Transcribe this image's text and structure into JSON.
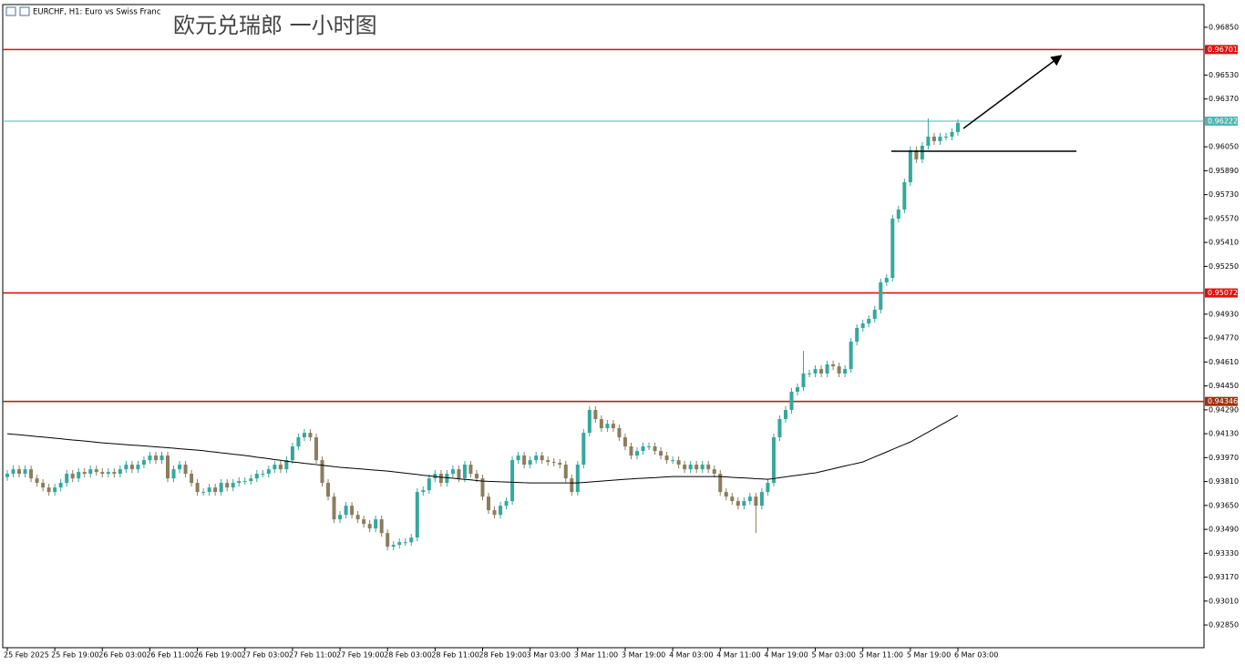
{
  "chart_data": {
    "type": "candlestick",
    "header": "EURCHF, H1:  Euro vs Swiss Franc",
    "title": "欧元兑瑞郎 一小时图",
    "up_color": "#35a89c",
    "down_color": "#8b7d5e",
    "ylim": [
      0.92698,
      0.97002
    ],
    "yticks": [
      {
        "value": 0.9685,
        "label": "0.96850"
      },
      {
        "value": 0.9653,
        "label": "0.96530"
      },
      {
        "value": 0.9637,
        "label": "0.96370"
      },
      {
        "value": 0.9605,
        "label": "0.96050"
      },
      {
        "value": 0.9589,
        "label": "0.95890"
      },
      {
        "value": 0.9573,
        "label": "0.95730"
      },
      {
        "value": 0.9557,
        "label": "0.95570"
      },
      {
        "value": 0.9541,
        "label": "0.95410"
      },
      {
        "value": 0.9525,
        "label": "0.95250"
      },
      {
        "value": 0.9493,
        "label": "0.94930"
      },
      {
        "value": 0.9477,
        "label": "0.94770"
      },
      {
        "value": 0.9461,
        "label": "0.94610"
      },
      {
        "value": 0.9445,
        "label": "0.94450"
      },
      {
        "value": 0.9429,
        "label": "0.94290"
      },
      {
        "value": 0.9413,
        "label": "0.94130"
      },
      {
        "value": 0.9397,
        "label": "0.93970"
      },
      {
        "value": 0.9381,
        "label": "0.93810"
      },
      {
        "value": 0.9365,
        "label": "0.93650"
      },
      {
        "value": 0.9349,
        "label": "0.93490"
      },
      {
        "value": 0.9333,
        "label": "0.93330"
      },
      {
        "value": 0.9317,
        "label": "0.93170"
      },
      {
        "value": 0.9301,
        "label": "0.93010"
      },
      {
        "value": 0.9285,
        "label": "0.92850"
      }
    ],
    "levels": [
      {
        "value": 0.96701,
        "color": "#e01010"
      },
      {
        "value": 0.96222,
        "color": "#4cb8b0"
      },
      {
        "value": 0.95072,
        "color": "#e01010"
      },
      {
        "value": 0.94346,
        "color": "#a0300e"
      }
    ],
    "categories": [
      "25 Feb 2025",
      null,
      null,
      null,
      null,
      null,
      null,
      null,
      "25 Feb 19:00",
      null,
      null,
      null,
      null,
      null,
      null,
      null,
      "26 Feb 03:00",
      null,
      null,
      null,
      null,
      null,
      null,
      null,
      "26 Feb 11:00",
      null,
      null,
      null,
      null,
      null,
      null,
      null,
      "26 Feb 19:00",
      null,
      null,
      null,
      null,
      null,
      null,
      null,
      "27 Feb 03:00",
      null,
      null,
      null,
      null,
      null,
      null,
      null,
      "27 Feb 11:00",
      null,
      null,
      null,
      null,
      null,
      null,
      null,
      "27 Feb 19:00",
      null,
      null,
      null,
      null,
      null,
      null,
      null,
      "28 Feb 03:00",
      null,
      null,
      null,
      null,
      null,
      null,
      null,
      "28 Feb 11:00",
      null,
      null,
      null,
      null,
      null,
      null,
      null,
      "28 Feb 19:00",
      null,
      null,
      null,
      null,
      null,
      null,
      null,
      "3 Mar 03:00",
      null,
      null,
      null,
      null,
      null,
      null,
      null,
      "3 Mar 11:00",
      null,
      null,
      null,
      null,
      null,
      null,
      null,
      "3 Mar 19:00",
      null,
      null,
      null,
      null,
      null,
      null,
      null,
      "4 Mar 03:00",
      null,
      null,
      null,
      null,
      null,
      null,
      null,
      "4 Mar 11:00",
      null,
      null,
      null,
      null,
      null,
      null,
      null,
      "4 Mar 19:00",
      null,
      null,
      null,
      null,
      null,
      null,
      null,
      "5 Mar 03:00",
      null,
      null,
      null,
      null,
      null,
      null,
      null,
      "5 Mar 11:00",
      null,
      null,
      null,
      null,
      null,
      null,
      null,
      "5 Mar 19:00",
      null,
      null,
      null,
      null,
      null,
      null,
      null,
      "6 Mar 03:00"
    ],
    "open": [
      0.9384,
      0.93862,
      0.93892,
      0.93862,
      0.93892,
      0.93831,
      0.93801,
      0.9377,
      0.9374,
      0.9377,
      0.93801,
      0.93862,
      0.93831,
      0.93874,
      0.93862,
      0.93892,
      0.93874,
      0.93862,
      0.93874,
      0.93862,
      0.93892,
      0.93923,
      0.93892,
      0.93923,
      0.93953,
      0.93984,
      0.93953,
      0.93984,
      0.93831,
      0.93892,
      0.93923,
      0.93862,
      0.93801,
      0.9374,
      0.9374,
      0.9377,
      0.9374,
      0.93801,
      0.9377,
      0.93801,
      0.93813,
      0.93813,
      0.93831,
      0.93862,
      0.93862,
      0.93892,
      0.93923,
      0.93892,
      0.93953,
      0.94045,
      0.94106,
      0.94136,
      0.94106,
      0.93953,
      0.93801,
      0.93709,
      0.93557,
      0.93587,
      0.93648,
      0.93587,
      0.93557,
      0.93526,
      0.93496,
      0.93557,
      0.93465,
      0.93374,
      0.93386,
      0.93404,
      0.93404,
      0.93435,
      0.9374,
      0.93752,
      0.93831,
      0.93862,
      0.93801,
      0.93862,
      0.93892,
      0.93831,
      0.93923,
      0.93862,
      0.93831,
      0.93709,
      0.93618,
      0.93587,
      0.93648,
      0.93679,
      0.93953,
      0.93984,
      0.93923,
      0.93953,
      0.93984,
      0.93953,
      0.93941,
      0.93935,
      0.93923,
      0.93831,
      0.9374,
      0.93923,
      0.94136,
      0.94289,
      0.94228,
      0.94167,
      0.94197,
      0.94167,
      0.94106,
      0.94045,
      0.93984,
      0.94014,
      0.94045,
      0.94045,
      0.94014,
      0.93984,
      0.93953,
      0.93953,
      0.93923,
      0.93892,
      0.93923,
      0.93892,
      0.93923,
      0.93892,
      0.93862,
      0.9374,
      0.93709,
      0.93679,
      0.93648,
      0.93679,
      0.93709,
      0.93648,
      0.9374,
      0.93801,
      0.94106,
      0.94228,
      0.94289,
      0.94411,
      0.94441,
      0.94533,
      0.94533,
      0.94563,
      0.94533,
      0.94594,
      0.94581,
      0.94533,
      0.94563,
      0.94746,
      0.94838,
      0.94868,
      0.94899,
      0.9496,
      0.95143,
      0.95173,
      0.95569,
      0.9563,
      0.95813,
      0.96027,
      0.95966,
      0.96057,
      0.96118,
      0.96088,
      0.96118,
      0.96118,
      0.96149
    ],
    "high": [
      0.93887,
      0.93917,
      0.93917,
      0.93917,
      0.93917,
      0.93856,
      0.93826,
      0.93795,
      0.93795,
      0.93826,
      0.93887,
      0.93887,
      0.93899,
      0.93899,
      0.93917,
      0.93917,
      0.93899,
      0.93899,
      0.93899,
      0.93917,
      0.93948,
      0.93948,
      0.93948,
      0.93978,
      0.94009,
      0.94009,
      0.94009,
      0.94009,
      0.93917,
      0.93948,
      0.93948,
      0.93887,
      0.93826,
      0.93765,
      0.93795,
      0.93795,
      0.93826,
      0.93826,
      0.93826,
      0.93838,
      0.93838,
      0.93856,
      0.93887,
      0.93887,
      0.93917,
      0.93948,
      0.93948,
      0.93978,
      0.9407,
      0.94131,
      0.94161,
      0.94161,
      0.94131,
      0.93978,
      0.93826,
      0.93734,
      0.93612,
      0.93673,
      0.93673,
      0.93612,
      0.93582,
      0.93551,
      0.93582,
      0.93582,
      0.9349,
      0.93411,
      0.93429,
      0.93429,
      0.9346,
      0.93765,
      0.93777,
      0.93856,
      0.93887,
      0.93887,
      0.93887,
      0.93917,
      0.93917,
      0.93948,
      0.93948,
      0.93887,
      0.93856,
      0.93734,
      0.93643,
      0.93673,
      0.93704,
      0.93978,
      0.94009,
      0.94009,
      0.93978,
      0.94009,
      0.94009,
      0.93978,
      0.93966,
      0.9396,
      0.93948,
      0.93856,
      0.93948,
      0.94161,
      0.94314,
      0.94314,
      0.94253,
      0.94222,
      0.94222,
      0.94192,
      0.94131,
      0.9407,
      0.94039,
      0.9407,
      0.9407,
      0.9407,
      0.94039,
      0.94009,
      0.93978,
      0.93978,
      0.93948,
      0.93948,
      0.93948,
      0.93948,
      0.93948,
      0.93917,
      0.93887,
      0.93765,
      0.93734,
      0.93704,
      0.93704,
      0.93734,
      0.93734,
      0.93765,
      0.93826,
      0.94131,
      0.94253,
      0.94314,
      0.94436,
      0.94466,
      0.94685,
      0.94558,
      0.94588,
      0.94588,
      0.94619,
      0.94619,
      0.94606,
      0.94588,
      0.94771,
      0.94863,
      0.94893,
      0.94924,
      0.94985,
      0.95168,
      0.95198,
      0.95594,
      0.95655,
      0.95838,
      0.96052,
      0.96052,
      0.96082,
      0.9624,
      0.96143,
      0.96143,
      0.96143,
      0.96174,
      0.96235
    ],
    "low": [
      0.93815,
      0.93837,
      0.93837,
      0.93837,
      0.93806,
      0.93776,
      0.93745,
      0.93715,
      0.93715,
      0.93745,
      0.93776,
      0.93806,
      0.93806,
      0.93837,
      0.93837,
      0.93849,
      0.93837,
      0.93837,
      0.93837,
      0.93837,
      0.93867,
      0.93867,
      0.93867,
      0.93898,
      0.93928,
      0.93928,
      0.93928,
      0.93806,
      0.93806,
      0.93867,
      0.93837,
      0.93776,
      0.93715,
      0.93715,
      0.93715,
      0.93715,
      0.93715,
      0.93745,
      0.93745,
      0.93776,
      0.93788,
      0.93788,
      0.93806,
      0.93837,
      0.93837,
      0.93867,
      0.93867,
      0.93867,
      0.93928,
      0.9402,
      0.94081,
      0.94081,
      0.93928,
      0.93776,
      0.93684,
      0.93532,
      0.93532,
      0.93562,
      0.93562,
      0.93532,
      0.93501,
      0.93471,
      0.93471,
      0.9344,
      0.93349,
      0.93349,
      0.93361,
      0.93379,
      0.93379,
      0.9341,
      0.93715,
      0.93727,
      0.93806,
      0.93776,
      0.93776,
      0.93837,
      0.93806,
      0.93806,
      0.93837,
      0.93806,
      0.93684,
      0.93593,
      0.93562,
      0.93562,
      0.93623,
      0.93654,
      0.93928,
      0.93898,
      0.93898,
      0.93928,
      0.93928,
      0.93916,
      0.9391,
      0.93898,
      0.93806,
      0.93715,
      0.93715,
      0.93898,
      0.94111,
      0.94203,
      0.94142,
      0.94142,
      0.94142,
      0.94081,
      0.9402,
      0.93959,
      0.93959,
      0.93989,
      0.9402,
      0.93989,
      0.93959,
      0.93928,
      0.93928,
      0.93898,
      0.93867,
      0.93867,
      0.93867,
      0.93867,
      0.93867,
      0.93837,
      0.93715,
      0.93684,
      0.93654,
      0.93623,
      0.93623,
      0.93654,
      0.93465,
      0.93623,
      0.93715,
      0.93776,
      0.94081,
      0.94203,
      0.94264,
      0.94386,
      0.94416,
      0.94508,
      0.94508,
      0.94508,
      0.94508,
      0.94556,
      0.94508,
      0.94508,
      0.94538,
      0.94721,
      0.94813,
      0.94843,
      0.94874,
      0.94935,
      0.95118,
      0.95148,
      0.95544,
      0.95605,
      0.95788,
      0.95941,
      0.95941,
      0.96032,
      0.96063,
      0.96063,
      0.96093,
      0.96093,
      0.96124
    ],
    "close": [
      0.93862,
      0.93892,
      0.93862,
      0.93892,
      0.93831,
      0.93801,
      0.9377,
      0.9374,
      0.9377,
      0.93801,
      0.93862,
      0.93831,
      0.93874,
      0.93862,
      0.93892,
      0.93874,
      0.93862,
      0.93874,
      0.93862,
      0.93892,
      0.93923,
      0.93892,
      0.93923,
      0.93953,
      0.93984,
      0.93953,
      0.93984,
      0.93831,
      0.93892,
      0.93923,
      0.93862,
      0.93801,
      0.9374,
      0.9374,
      0.9377,
      0.9374,
      0.93801,
      0.9377,
      0.93801,
      0.93813,
      0.93813,
      0.93831,
      0.93862,
      0.93862,
      0.93892,
      0.93923,
      0.93892,
      0.93953,
      0.94045,
      0.94106,
      0.94136,
      0.94106,
      0.93953,
      0.93801,
      0.93709,
      0.93557,
      0.93587,
      0.93648,
      0.93587,
      0.93557,
      0.93526,
      0.93496,
      0.93557,
      0.93465,
      0.93374,
      0.93386,
      0.93404,
      0.93404,
      0.93435,
      0.9374,
      0.93752,
      0.93831,
      0.93862,
      0.93801,
      0.93862,
      0.93892,
      0.93831,
      0.93923,
      0.93862,
      0.93831,
      0.93709,
      0.93618,
      0.93587,
      0.93648,
      0.93679,
      0.93953,
      0.93984,
      0.93923,
      0.93953,
      0.93984,
      0.93953,
      0.93941,
      0.93935,
      0.93923,
      0.93831,
      0.9374,
      0.93923,
      0.94136,
      0.94289,
      0.94228,
      0.94167,
      0.94197,
      0.94167,
      0.94106,
      0.94045,
      0.93984,
      0.94014,
      0.94045,
      0.94045,
      0.94014,
      0.93984,
      0.93953,
      0.93953,
      0.93923,
      0.93892,
      0.93923,
      0.93892,
      0.93923,
      0.93892,
      0.93862,
      0.9374,
      0.93709,
      0.93679,
      0.93648,
      0.93679,
      0.93709,
      0.93648,
      0.9374,
      0.93801,
      0.94106,
      0.94228,
      0.94289,
      0.94411,
      0.94441,
      0.94533,
      0.94533,
      0.94563,
      0.94533,
      0.94594,
      0.94581,
      0.94533,
      0.94563,
      0.94746,
      0.94838,
      0.94868,
      0.94899,
      0.9496,
      0.95143,
      0.95173,
      0.95569,
      0.9563,
      0.95813,
      0.96027,
      0.95966,
      0.96057,
      0.96118,
      0.96088,
      0.96118,
      0.96118,
      0.96149,
      0.9621
    ],
    "moving_average": {
      "color": "#000000",
      "values": [
        0.9413,
        0.94126,
        0.94123,
        0.94119,
        0.94115,
        0.94111,
        0.94108,
        0.94104,
        0.941,
        0.94096,
        0.94092,
        0.94088,
        0.94085,
        0.94081,
        0.94077,
        0.94073,
        0.94069,
        0.94066,
        0.94063,
        0.9406,
        0.94057,
        0.94054,
        0.94051,
        0.94048,
        0.94045,
        0.94042,
        0.94039,
        0.94036,
        0.94033,
        0.94029,
        0.94026,
        0.94023,
        0.9402,
        0.94016,
        0.94011,
        0.94007,
        0.94002,
        0.93998,
        0.93993,
        0.93989,
        0.93984,
        0.93979,
        0.93973,
        0.93968,
        0.93963,
        0.93957,
        0.93952,
        0.93946,
        0.93941,
        0.93937,
        0.93932,
        0.93928,
        0.93923,
        0.93919,
        0.93914,
        0.9391,
        0.93905,
        0.93902,
        0.93899,
        0.93896,
        0.93893,
        0.93889,
        0.93886,
        0.93883,
        0.9388,
        0.93875,
        0.93871,
        0.93866,
        0.93862,
        0.93857,
        0.93852,
        0.93848,
        0.93843,
        0.93839,
        0.93836,
        0.93832,
        0.93828,
        0.93824,
        0.93821,
        0.93817,
        0.93813,
        0.93811,
        0.9381,
        0.93808,
        0.93807,
        0.93805,
        0.93804,
        0.93802,
        0.93801,
        0.93801,
        0.93801,
        0.93801,
        0.93801,
        0.93801,
        0.93801,
        0.93801,
        0.93801,
        0.93804,
        0.93807,
        0.9381,
        0.93813,
        0.93816,
        0.93819,
        0.93822,
        0.93825,
        0.93827,
        0.9383,
        0.93832,
        0.93834,
        0.93836,
        0.93839,
        0.93841,
        0.93843,
        0.93843,
        0.93843,
        0.93843,
        0.93843,
        0.93843,
        0.93843,
        0.93843,
        0.93843,
        0.93841,
        0.93838,
        0.93836,
        0.93834,
        0.93832,
        0.93829,
        0.93827,
        0.93825,
        0.9383,
        0.93836,
        0.93841,
        0.93847,
        0.93852,
        0.93857,
        0.93863,
        0.93868,
        0.93877,
        0.93886,
        0.93895,
        0.93905,
        0.93914,
        0.93923,
        0.93932,
        0.93941,
        0.93958,
        0.93975,
        0.93991,
        0.94008,
        0.94025,
        0.94042,
        0.94058,
        0.94075,
        0.94097,
        0.94119,
        0.94141,
        0.94163,
        0.94186,
        0.94208,
        0.9423,
        0.94252
      ]
    }
  }
}
